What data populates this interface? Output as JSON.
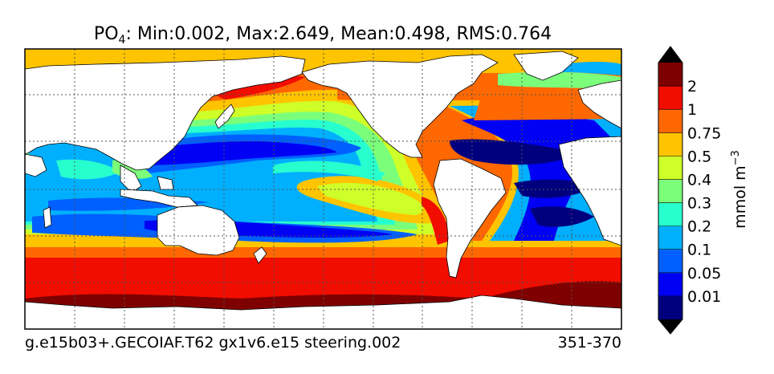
{
  "title": {
    "species": "PO",
    "subscript": "4",
    "stats": ": Min:0.002, Max:2.649, Mean:0.498, RMS:0.764"
  },
  "footer": {
    "case_name": "g.e15b03+.GECOIAF.T62 gx1v6.e15 steering.002",
    "years": "351-370"
  },
  "colorbar": {
    "label": "mmol m",
    "label_exponent": "−3",
    "levels": [
      "0.01",
      "0.05",
      "0.1",
      "0.2",
      "0.3",
      "0.4",
      "0.5",
      "0.75",
      "1",
      "2"
    ],
    "colors": [
      "#00007f",
      "#0000f5",
      "#0060ff",
      "#00b0ff",
      "#28ffce",
      "#7bff7b",
      "#ceff28",
      "#ffc400",
      "#ff6800",
      "#f10d00",
      "#7f0000"
    ]
  },
  "colors": {
    "land": "#ffffff",
    "coast": "#000000",
    "grid": "#555555"
  }
}
